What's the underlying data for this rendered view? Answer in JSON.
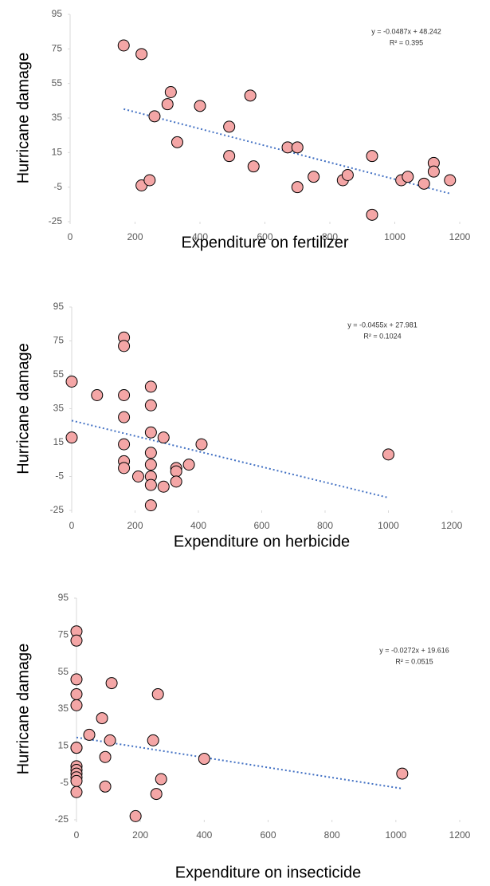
{
  "chart_data": [
    {
      "type": "scatter",
      "x_label": "Expenditure on fertilizer",
      "y_label": "Hurricane damage",
      "annotations": [
        "y = -0.0487x + 48.242",
        "R² = 0.395"
      ],
      "color": "#f4a6a6",
      "x": [
        165,
        220,
        310,
        300,
        260,
        400,
        330,
        490,
        490,
        555,
        565,
        220,
        245,
        670,
        700,
        700,
        750,
        840,
        855,
        930,
        930,
        1020,
        1040,
        1090,
        1120,
        1120,
        1170
      ],
      "values": [
        77,
        72,
        50,
        43,
        36,
        42,
        21,
        30,
        13,
        48,
        7,
        -4,
        -1,
        18,
        18,
        -5,
        1,
        -1,
        2,
        13,
        -21,
        -1,
        1,
        -3,
        9,
        4,
        -1
      ],
      "trendline": {
        "color": "#4472c4",
        "x": [
          165,
          1170
        ],
        "values": [
          40.2,
          -8.7
        ]
      },
      "xlim": [
        0,
        1200
      ],
      "xticks": [
        0,
        200,
        400,
        600,
        800,
        1000,
        1200
      ],
      "ylim": [
        -25,
        95
      ],
      "yticks": [
        -25,
        -5,
        15,
        35,
        55,
        75,
        95
      ]
    },
    {
      "type": "scatter",
      "x_label": "Expenditure on herbicide",
      "y_label": "Hurricane damage",
      "annotations": [
        "y = -0.0455x + 27.981",
        "R² = 0.1024"
      ],
      "color": "#f4a6a6",
      "x": [
        0,
        0,
        80,
        165,
        165,
        165,
        165,
        165,
        165,
        165,
        210,
        250,
        250,
        250,
        250,
        250,
        250,
        250,
        250,
        290,
        290,
        330,
        330,
        330,
        370,
        410,
        1000
      ],
      "values": [
        51,
        18,
        43,
        77,
        72,
        43,
        30,
        14,
        4,
        0,
        -5,
        48,
        37,
        21,
        9,
        2,
        -5,
        -10,
        -22,
        18,
        -11,
        0,
        -2,
        -8,
        2,
        14,
        8
      ],
      "trendline": {
        "color": "#4472c4",
        "x": [
          0,
          1000
        ],
        "values": [
          28,
          -17.5
        ]
      },
      "xlim": [
        0,
        1200
      ],
      "xticks": [
        0,
        200,
        400,
        600,
        800,
        1000,
        1200
      ],
      "ylim": [
        -25,
        95
      ],
      "yticks": [
        -25,
        -5,
        15,
        35,
        55,
        75,
        95
      ]
    },
    {
      "type": "scatter",
      "x_label": "Expenditure on insecticide",
      "y_label": "Hurricane damage",
      "annotations": [
        "y = -0.0272x + 19.616",
        "R² = 0.0515"
      ],
      "color": "#f4a6a6",
      "x": [
        0,
        0,
        0,
        0,
        0,
        0,
        0,
        0,
        0,
        0,
        0,
        0,
        0,
        40,
        80,
        90,
        90,
        105,
        110,
        185,
        240,
        250,
        255,
        265,
        400,
        1020
      ],
      "values": [
        77,
        72,
        51,
        43,
        37,
        14,
        14,
        4,
        2,
        0,
        -2,
        -4,
        -10,
        21,
        30,
        9,
        -7,
        18,
        49,
        -23,
        18,
        -11,
        43,
        -3,
        8,
        0
      ],
      "trendline": {
        "color": "#4472c4",
        "x": [
          0,
          1020
        ],
        "values": [
          19.6,
          -8.1
        ]
      },
      "xlim": [
        0,
        1200
      ],
      "xticks": [
        0,
        200,
        400,
        600,
        800,
        1000,
        1200
      ],
      "ylim": [
        -25,
        95
      ],
      "yticks": [
        -25,
        -5,
        15,
        35,
        55,
        75,
        95
      ]
    }
  ]
}
